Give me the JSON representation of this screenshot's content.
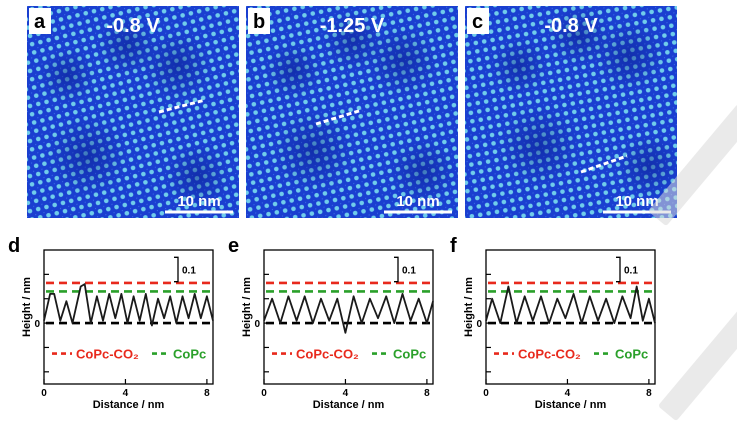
{
  "stm_panels": [
    {
      "letter": "a",
      "voltage": "-0.8 V",
      "scale_bar": "10 nm"
    },
    {
      "letter": "b",
      "voltage": "-1.25 V",
      "scale_bar": "10 nm"
    },
    {
      "letter": "c",
      "voltage": "-0.8 V",
      "scale_bar": "10 nm"
    }
  ],
  "profile_panels": [
    {
      "letter": "d",
      "scale": "0.1",
      "legend": {
        "red": "CoPc-CO₂",
        "green": "CoPc"
      }
    },
    {
      "letter": "e",
      "scale": "0.1",
      "legend": {
        "red": "CoPc-CO₂",
        "green": "CoPc"
      }
    },
    {
      "letter": "f",
      "scale": "0.1",
      "legend": {
        "red": "CoPc-CO₂",
        "green": "CoPc"
      }
    }
  ],
  "colors": {
    "red": "#e8291c",
    "green": "#2aa02a",
    "black": "#000000",
    "stm_base": "#1a3fd0",
    "stm_spot": "#7fe6f0"
  },
  "chart_data": [
    {
      "type": "line",
      "xlabel": "Distance / nm",
      "ylabel": "Height / nm",
      "x_ticks": [
        0,
        4,
        8
      ],
      "y_tick_labels": [
        "0"
      ],
      "xlim": [
        0,
        8.3
      ],
      "ylim": [
        -0.25,
        0.3
      ],
      "reference_lines": [
        {
          "color": "red",
          "y": 0.165
        },
        {
          "color": "green",
          "y": 0.13
        },
        {
          "color": "black",
          "y": 0.0
        }
      ],
      "series": [
        {
          "x": [
            0,
            0.3,
            0.5,
            0.8,
            1.1,
            1.4,
            1.8,
            2.0,
            2.3,
            2.6,
            2.9,
            3.2,
            3.5,
            3.8,
            4.1,
            4.4,
            4.7,
            5.0,
            5.3,
            5.6,
            5.9,
            6.2,
            6.5,
            6.8,
            7.1,
            7.4,
            7.7,
            8.0,
            8.3
          ],
          "y": [
            0.01,
            0.12,
            0.12,
            0.01,
            0.09,
            0.0,
            0.15,
            0.16,
            0.0,
            0.11,
            0.01,
            0.12,
            0.02,
            0.12,
            0.0,
            0.11,
            0.01,
            0.12,
            -0.01,
            0.1,
            0.02,
            0.11,
            0.0,
            0.11,
            0.02,
            0.12,
            0.02,
            0.11,
            0.01
          ]
        }
      ]
    },
    {
      "type": "line",
      "xlabel": "Distance / nm",
      "ylabel": "Height / nm",
      "x_ticks": [
        0,
        4,
        8
      ],
      "y_tick_labels": [
        "0"
      ],
      "xlim": [
        0,
        8.3
      ],
      "ylim": [
        -0.25,
        0.3
      ],
      "reference_lines": [
        {
          "color": "red",
          "y": 0.165
        },
        {
          "color": "green",
          "y": 0.13
        },
        {
          "color": "black",
          "y": 0.0
        }
      ],
      "series": [
        {
          "x": [
            0,
            0.4,
            0.8,
            1.2,
            1.6,
            2.0,
            2.4,
            2.8,
            3.2,
            3.6,
            4.0,
            4.4,
            4.8,
            5.2,
            5.6,
            6.0,
            6.4,
            6.8,
            7.2,
            7.6,
            8.0,
            8.3
          ],
          "y": [
            0.01,
            0.1,
            0.0,
            0.11,
            0.01,
            0.11,
            0.0,
            0.1,
            0.01,
            0.1,
            -0.04,
            0.11,
            0.0,
            0.1,
            0.02,
            0.11,
            0.0,
            0.12,
            0.01,
            0.1,
            0.0,
            0.09
          ]
        }
      ]
    },
    {
      "type": "line",
      "xlabel": "Distance / nm",
      "ylabel": "Height / nm",
      "x_ticks": [
        0,
        4,
        8
      ],
      "y_tick_labels": [
        "0"
      ],
      "xlim": [
        0,
        8.3
      ],
      "ylim": [
        -0.25,
        0.3
      ],
      "reference_lines": [
        {
          "color": "red",
          "y": 0.165
        },
        {
          "color": "green",
          "y": 0.13
        },
        {
          "color": "black",
          "y": 0.0
        }
      ],
      "series": [
        {
          "x": [
            0,
            0.3,
            0.7,
            1.1,
            1.5,
            1.9,
            2.3,
            2.7,
            3.1,
            3.5,
            3.9,
            4.3,
            4.7,
            5.1,
            5.5,
            5.9,
            6.3,
            6.7,
            7.1,
            7.4,
            7.7,
            8.0,
            8.3
          ],
          "y": [
            0.01,
            0.1,
            0.0,
            0.15,
            0.0,
            0.11,
            0.01,
            0.11,
            0.0,
            0.1,
            0.02,
            0.12,
            0.0,
            0.11,
            0.01,
            0.1,
            0.0,
            0.11,
            0.02,
            0.15,
            0.01,
            0.1,
            0.0
          ]
        }
      ]
    }
  ]
}
